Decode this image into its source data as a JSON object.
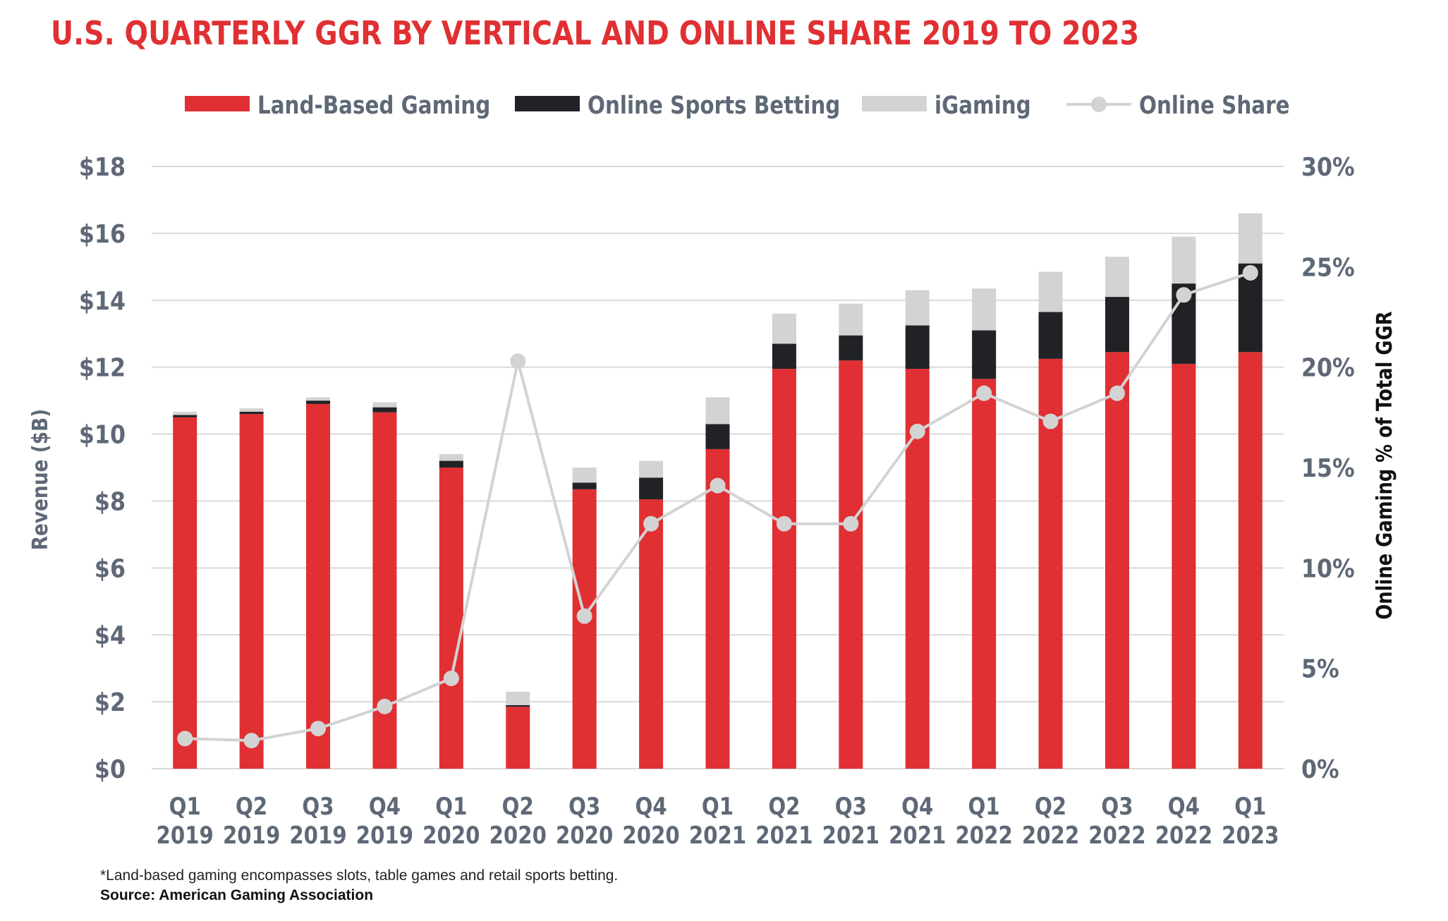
{
  "title": "U.S. QUARTERLY GGR BY VERTICAL AND ONLINE SHARE 2019 TO 2023",
  "footnote": "*Land-based gaming encompasses slots, table games and retail sports betting.",
  "source": "Source: American Gaming Association",
  "colors": {
    "land": "#e03033",
    "osb": "#212226",
    "igaming": "#d3d3d3",
    "share": "#d3d3d3",
    "axis_text": "#5e6876",
    "grid": "#d9d9d9"
  },
  "chart_data": {
    "type": "bar",
    "stacked": true,
    "ylabel": "Revenue ($B)",
    "y2label": "Online Gaming % of Total GGR",
    "ylim": [
      0,
      18
    ],
    "y2lim": [
      0,
      30
    ],
    "yticks": [
      "$0",
      "$2",
      "$4",
      "$6",
      "$8",
      "$10",
      "$12",
      "$14",
      "$16",
      "$18"
    ],
    "y2ticks": [
      "0%",
      "5%",
      "10%",
      "15%",
      "20%",
      "25%",
      "30%"
    ],
    "legend_position": "top",
    "grid": true,
    "categories": [
      [
        "Q1",
        "2019"
      ],
      [
        "Q2",
        "2019"
      ],
      [
        "Q3",
        "2019"
      ],
      [
        "Q4",
        "2019"
      ],
      [
        "Q1",
        "2020"
      ],
      [
        "Q2",
        "2020"
      ],
      [
        "Q3",
        "2020"
      ],
      [
        "Q4",
        "2020"
      ],
      [
        "Q1",
        "2021"
      ],
      [
        "Q2",
        "2021"
      ],
      [
        "Q3",
        "2021"
      ],
      [
        "Q4",
        "2021"
      ],
      [
        "Q1",
        "2022"
      ],
      [
        "Q2",
        "2022"
      ],
      [
        "Q3",
        "2022"
      ],
      [
        "Q4",
        "2022"
      ],
      [
        "Q1",
        "2023"
      ]
    ],
    "series": [
      {
        "name": "Land-Based Gaming",
        "kind": "bar",
        "values": [
          10.5,
          10.6,
          10.9,
          10.65,
          9.0,
          1.85,
          8.35,
          8.05,
          9.55,
          11.95,
          12.2,
          11.95,
          11.65,
          12.25,
          12.45,
          12.1,
          12.45
        ]
      },
      {
        "name": "Online Sports Betting",
        "kind": "bar",
        "values": [
          0.07,
          0.07,
          0.1,
          0.15,
          0.2,
          0.05,
          0.2,
          0.65,
          0.75,
          0.75,
          0.75,
          1.3,
          1.45,
          1.4,
          1.65,
          2.4,
          2.65
        ]
      },
      {
        "name": "iGaming",
        "kind": "bar",
        "values": [
          0.1,
          0.1,
          0.1,
          0.15,
          0.2,
          0.4,
          0.45,
          0.5,
          0.8,
          0.9,
          0.95,
          1.05,
          1.25,
          1.2,
          1.2,
          1.4,
          1.5
        ]
      },
      {
        "name": "Online Share",
        "kind": "line",
        "axis": "right",
        "values": [
          1.5,
          1.4,
          2.0,
          3.1,
          4.5,
          20.3,
          7.6,
          12.2,
          14.1,
          12.2,
          12.2,
          16.8,
          18.7,
          17.3,
          18.7,
          23.6,
          24.7
        ]
      }
    ]
  }
}
